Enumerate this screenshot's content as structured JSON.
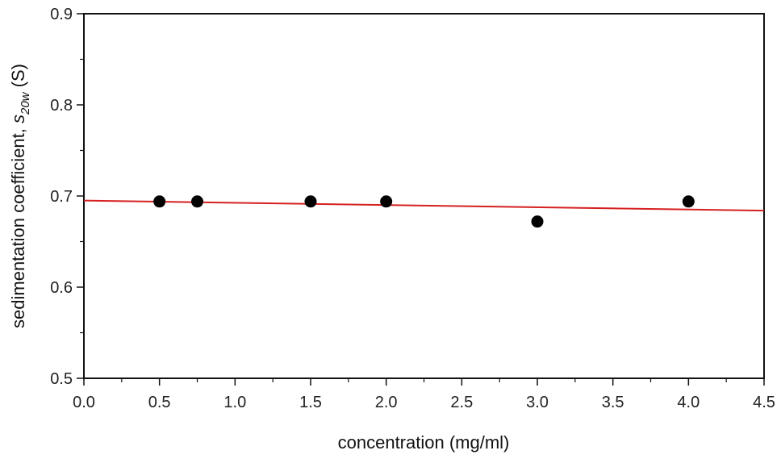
{
  "chart_data": {
    "type": "scatter",
    "xlabel": "concentration  (mg/ml)",
    "ylabel": {
      "prefix": "sedimentation coefficient, ",
      "symbol": "s",
      "subscript": "20w",
      "suffix": " (S)"
    },
    "xlim": [
      0.0,
      4.5
    ],
    "ylim": [
      0.5,
      0.9
    ],
    "x_ticks": [
      "0.0",
      "0.5",
      "1.0",
      "1.5",
      "2.0",
      "2.5",
      "3.0",
      "3.5",
      "4.0",
      "4.5"
    ],
    "y_ticks": [
      "0.5",
      "0.6",
      "0.7",
      "0.8",
      "0.9"
    ],
    "grid": false,
    "series": [
      {
        "x": [
          0.5,
          0.75,
          1.5,
          2.0,
          3.0,
          4.0
        ],
        "y": [
          0.694,
          0.694,
          0.694,
          0.694,
          0.672,
          0.694
        ],
        "color": "#000000",
        "marker": "circle"
      }
    ],
    "fit_line": {
      "x": [
        0.0,
        4.5
      ],
      "y": [
        0.695,
        0.684
      ],
      "color": "#d62020"
    }
  }
}
